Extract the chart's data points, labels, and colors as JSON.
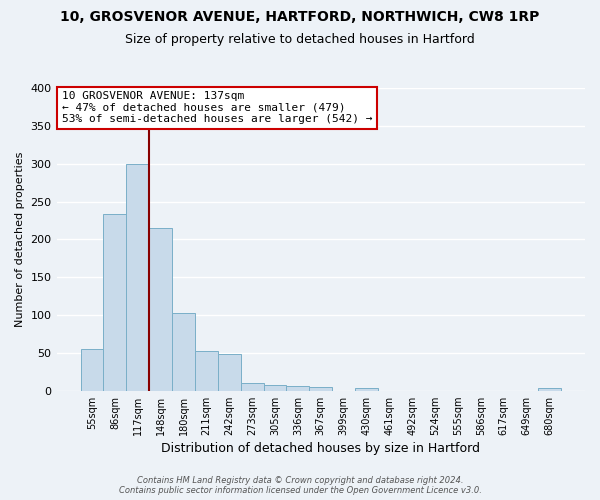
{
  "title": "10, GROSVENOR AVENUE, HARTFORD, NORTHWICH, CW8 1RP",
  "subtitle": "Size of property relative to detached houses in Hartford",
  "xlabel": "Distribution of detached houses by size in Hartford",
  "ylabel": "Number of detached properties",
  "bar_labels": [
    "55sqm",
    "86sqm",
    "117sqm",
    "148sqm",
    "180sqm",
    "211sqm",
    "242sqm",
    "273sqm",
    "305sqm",
    "336sqm",
    "367sqm",
    "399sqm",
    "430sqm",
    "461sqm",
    "492sqm",
    "524sqm",
    "555sqm",
    "586sqm",
    "617sqm",
    "649sqm",
    "680sqm"
  ],
  "bar_values": [
    55,
    233,
    300,
    215,
    103,
    52,
    48,
    10,
    7,
    6,
    5,
    0,
    3,
    0,
    0,
    0,
    0,
    0,
    0,
    0,
    3
  ],
  "bar_color": "#c8daea",
  "bar_edge_color": "#7aafc8",
  "ylim": [
    0,
    400
  ],
  "yticks": [
    0,
    50,
    100,
    150,
    200,
    250,
    300,
    350,
    400
  ],
  "annotation_line1": "10 GROSVENOR AVENUE: 137sqm",
  "annotation_line2": "← 47% of detached houses are smaller (479)",
  "annotation_line3": "53% of semi-detached houses are larger (542) →",
  "annotation_box_color": "#ffffff",
  "annotation_box_edge": "#cc0000",
  "red_line_color": "#880000",
  "footer_line1": "Contains HM Land Registry data © Crown copyright and database right 2024.",
  "footer_line2": "Contains public sector information licensed under the Open Government Licence v3.0.",
  "background_color": "#edf2f7",
  "grid_color": "#dce8f0",
  "title_fontsize": 10,
  "subtitle_fontsize": 9,
  "ylabel_fontsize": 8,
  "xlabel_fontsize": 9,
  "tick_fontsize": 7,
  "footer_fontsize": 6,
  "ann_fontsize": 8
}
